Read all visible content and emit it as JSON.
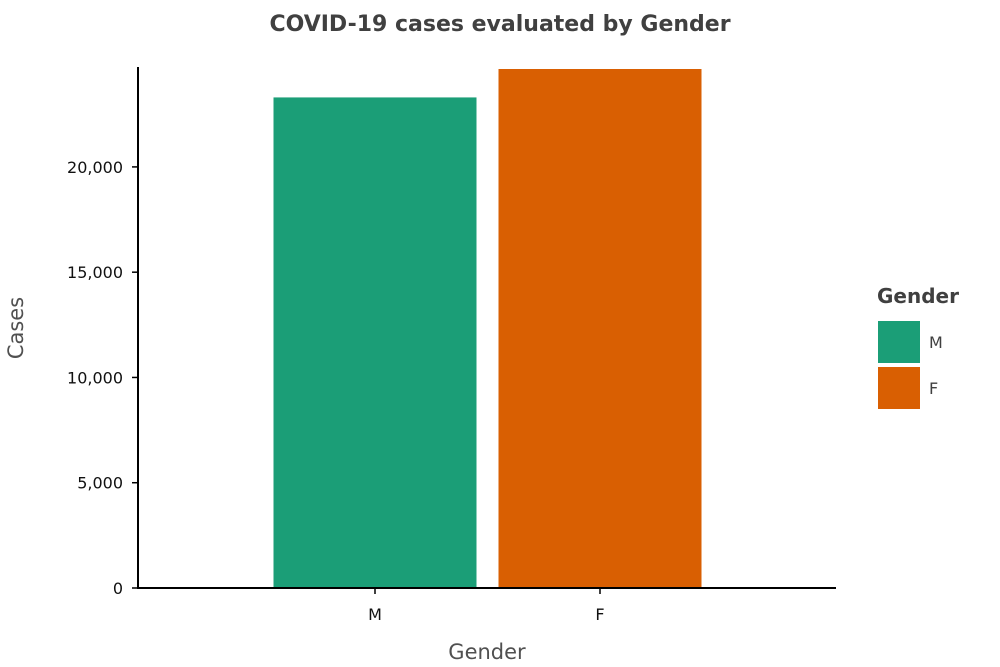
{
  "chart_data": {
    "type": "bar",
    "title": "COVID-19 cases evaluated by Gender",
    "xlabel": "Gender",
    "ylabel": "Cases",
    "categories": [
      "M",
      "F"
    ],
    "values": [
      23300,
      24650
    ],
    "colors": [
      "#1b9e77",
      "#d95f02"
    ],
    "ylim": [
      0,
      24650
    ],
    "yticks": [
      0,
      5000,
      10000,
      15000,
      20000
    ],
    "ytick_labels": [
      "0",
      "5,000",
      "10,000",
      "15,000",
      "20,000"
    ],
    "grid": false,
    "legend": {
      "title": "Gender",
      "position": "right",
      "items": [
        {
          "label": "M",
          "color": "#1b9e77"
        },
        {
          "label": "F",
          "color": "#d95f02"
        }
      ]
    }
  }
}
